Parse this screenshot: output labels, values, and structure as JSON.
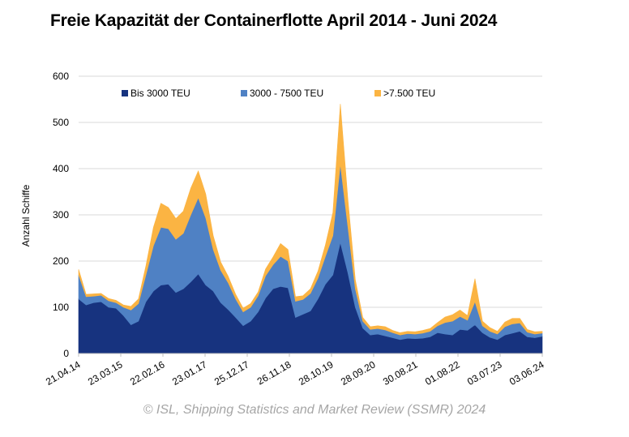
{
  "chart_data": {
    "type": "area",
    "stacked": true,
    "title": "Freie Kapazität der Containerflotte April 2014 - Juni 2024",
    "ylabel": "Anzahl Schiffe",
    "xlabel": "",
    "ylim": [
      0,
      600
    ],
    "yticks": [
      0,
      100,
      200,
      300,
      400,
      500,
      600
    ],
    "grid": "horizontal",
    "legend_position": "top",
    "x_tick_labels": [
      "21.04.14",
      "23.03.15",
      "22.02.16",
      "23.01.17",
      "25.12.17",
      "26.11.18",
      "28.10.19",
      "28.09.20",
      "30.08.21",
      "01.08.22",
      "03.07.23",
      "03.06.24"
    ],
    "x": [
      "21.04.14",
      "19.06.14",
      "18.08.14",
      "17.10.14",
      "16.12.14",
      "14.02.15",
      "15.04.15",
      "14.06.15",
      "13.08.15",
      "12.10.15",
      "11.12.15",
      "09.02.16",
      "09.04.16",
      "08.06.16",
      "07.08.16",
      "06.10.16",
      "05.12.16",
      "03.02.17",
      "04.04.17",
      "03.06.17",
      "02.08.17",
      "01.10.17",
      "30.11.17",
      "29.01.18",
      "30.03.18",
      "29.05.18",
      "28.07.18",
      "26.09.18",
      "25.11.18",
      "24.01.19",
      "25.03.19",
      "24.05.19",
      "23.07.19",
      "21.09.19",
      "20.11.19",
      "19.01.20",
      "19.03.20",
      "18.05.20",
      "17.07.20",
      "15.09.20",
      "14.11.20",
      "13.01.21",
      "14.03.21",
      "13.05.21",
      "12.07.21",
      "10.09.21",
      "09.11.21",
      "08.01.22",
      "09.03.22",
      "08.05.22",
      "07.07.22",
      "05.09.22",
      "04.11.22",
      "03.01.23",
      "04.03.23",
      "03.05.23",
      "02.07.23",
      "31.08.23",
      "30.10.23",
      "29.12.23",
      "27.02.24",
      "27.04.24",
      "03.06.24"
    ],
    "series": [
      {
        "name": "Bis 3000 TEU",
        "color": "#17337f",
        "values": [
          118,
          105,
          110,
          112,
          100,
          98,
          82,
          62,
          70,
          112,
          135,
          148,
          150,
          132,
          140,
          155,
          172,
          148,
          135,
          110,
          95,
          78,
          60,
          70,
          90,
          120,
          140,
          145,
          142,
          78,
          85,
          92,
          118,
          150,
          170,
          240,
          175,
          100,
          55,
          40,
          42,
          38,
          34,
          30,
          33,
          32,
          33,
          36,
          45,
          42,
          40,
          52,
          50,
          62,
          45,
          35,
          30,
          40,
          44,
          48,
          36,
          34,
          37
        ]
      },
      {
        "name": "3000 - 7500 TEU",
        "color": "#4f81c4",
        "values": [
          52,
          18,
          14,
          14,
          14,
          12,
          18,
          32,
          38,
          58,
          98,
          125,
          120,
          115,
          120,
          145,
          165,
          145,
          90,
          70,
          58,
          40,
          30,
          30,
          35,
          48,
          52,
          65,
          58,
          35,
          32,
          38,
          45,
          60,
          85,
          170,
          100,
          40,
          15,
          12,
          12,
          13,
          11,
          10,
          10,
          10,
          11,
          12,
          15,
          25,
          30,
          28,
          22,
          50,
          15,
          13,
          12,
          18,
          20,
          18,
          10,
          8,
          7
        ]
      },
      {
        "name": ">7.500 TEU",
        "color": "#fbb443",
        "values": [
          12,
          5,
          5,
          4,
          5,
          5,
          5,
          8,
          10,
          20,
          40,
          52,
          46,
          45,
          48,
          58,
          58,
          52,
          30,
          18,
          14,
          10,
          8,
          8,
          8,
          15,
          17,
          28,
          25,
          10,
          8,
          10,
          15,
          25,
          50,
          130,
          60,
          20,
          8,
          6,
          6,
          7,
          5,
          5,
          5,
          5,
          6,
          6,
          7,
          12,
          14,
          14,
          10,
          50,
          10,
          8,
          6,
          10,
          12,
          10,
          6,
          5,
          4
        ]
      }
    ]
  },
  "footer": "© ISL, Shipping Statistics and Market Review (SSMR) 2024"
}
